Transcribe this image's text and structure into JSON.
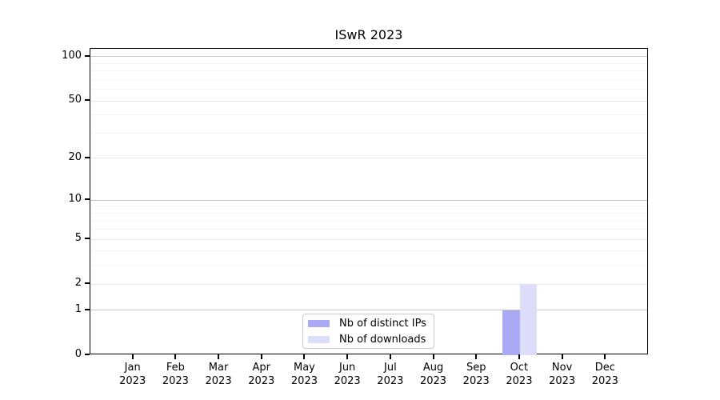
{
  "figure": {
    "background": "#ffffff"
  },
  "chart_data": {
    "type": "bar",
    "title": "ISwR 2023",
    "x_categories": [
      "Jan 2023",
      "Feb 2023",
      "Mar 2023",
      "Apr 2023",
      "May 2023",
      "Jun 2023",
      "Jul 2023",
      "Aug 2023",
      "Sep 2023",
      "Oct 2023",
      "Nov 2023",
      "Dec 2023"
    ],
    "x_tick_months": [
      "Jan",
      "Feb",
      "Mar",
      "Apr",
      "May",
      "Jun",
      "Jul",
      "Aug",
      "Sep",
      "Oct",
      "Nov",
      "Dec"
    ],
    "x_tick_year": "2023",
    "series": [
      {
        "name": "Nb of distinct IPs",
        "color": "#a9a9f6",
        "values": [
          0,
          0,
          0,
          0,
          0,
          0,
          0,
          0,
          0,
          1,
          0,
          0
        ]
      },
      {
        "name": "Nb of downloads",
        "color": "#dcdef9",
        "values": [
          0,
          0,
          0,
          0,
          0,
          0,
          0,
          0,
          0,
          2,
          0,
          0
        ]
      }
    ],
    "yscale": "log1p",
    "ylim": [
      0,
      113
    ],
    "y_tick_values": [
      0,
      1,
      2,
      5,
      10,
      20,
      50,
      100
    ],
    "y_tick_labels": [
      "0",
      "1",
      "2",
      "5",
      "10",
      "20",
      "50",
      "100"
    ],
    "y_decade_gridlines": [
      1,
      10,
      100
    ],
    "y_minor_gridlines": [
      3,
      4,
      6,
      7,
      8,
      9,
      30,
      40,
      60,
      70,
      80,
      90
    ],
    "grid": true,
    "legend_position": "lower center inside",
    "colors": {
      "grid_decade": "#c5c5c5",
      "grid_major": "#e8e8e8",
      "grid_minor": "#f3f3f3",
      "axis": "#000000",
      "text": "#000000",
      "legend_border": "#c9c9c9",
      "background": "#ffffff"
    }
  }
}
